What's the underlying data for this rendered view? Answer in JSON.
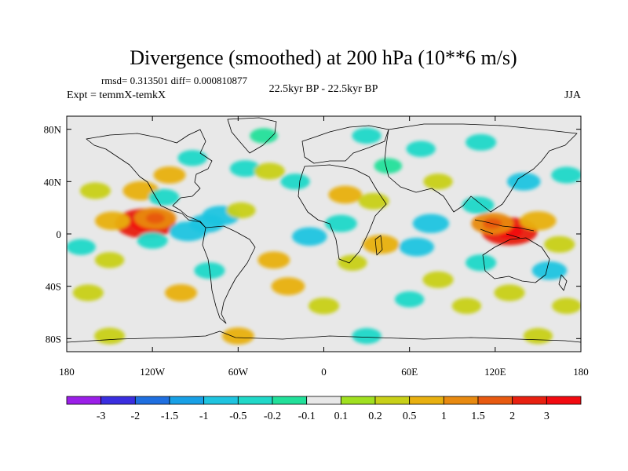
{
  "chart_data": {
    "type": "heatmap",
    "title": "Divergence (smoothed) at 200 hPa (10**6 m/s)",
    "stats_label": "rmsd= 0.313501 diff= 0.000810877",
    "experiment_label": "Expt = temmX-temkX",
    "period_label": "22.5kyr BP - 22.5kyr BP",
    "season_label": "JJA",
    "x_axis": {
      "range": [
        -180,
        180
      ],
      "ticks": [
        {
          "value": -180,
          "label": "180"
        },
        {
          "value": -120,
          "label": "120W"
        },
        {
          "value": -60,
          "label": "60W"
        },
        {
          "value": 0,
          "label": "0"
        },
        {
          "value": 60,
          "label": "60E"
        },
        {
          "value": 120,
          "label": "120E"
        },
        {
          "value": 180,
          "label": "180"
        }
      ]
    },
    "y_axis": {
      "range": [
        -90,
        90
      ],
      "ticks": [
        {
          "value": 80,
          "label": "80N"
        },
        {
          "value": 40,
          "label": "40N"
        },
        {
          "value": 0,
          "label": "0"
        },
        {
          "value": -40,
          "label": "40S"
        },
        {
          "value": -80,
          "label": "80S"
        }
      ]
    },
    "colorbar": {
      "labels": [
        "-3",
        "-2",
        "-1.5",
        "-1",
        "-0.5",
        "-0.2",
        "-0.1",
        "0.1",
        "0.2",
        "0.5",
        "1",
        "1.5",
        "2",
        "3"
      ],
      "colors": [
        "#9b1fe8",
        "#3a2ee0",
        "#1f6fe0",
        "#18a0e6",
        "#1fc4e0",
        "#20d8c8",
        "#22e09a",
        "#e8e8e8",
        "#a0e020",
        "#c8d018",
        "#e8b010",
        "#e88a10",
        "#e85a10",
        "#e82010",
        "#f20a10"
      ]
    },
    "anomalies": [
      {
        "lon": -125,
        "lat": 8,
        "value": 2.5
      },
      {
        "lon": -118,
        "lat": 12,
        "value": 1.2
      },
      {
        "lon": -148,
        "lat": 10,
        "value": 0.7
      },
      {
        "lon": -160,
        "lat": 33,
        "value": 0.4
      },
      {
        "lon": -128,
        "lat": 33,
        "value": 0.8
      },
      {
        "lon": -108,
        "lat": 45,
        "value": 0.5
      },
      {
        "lon": -112,
        "lat": 28,
        "value": -0.4
      },
      {
        "lon": -95,
        "lat": 2,
        "value": -0.9
      },
      {
        "lon": -120,
        "lat": -5,
        "value": -0.4
      },
      {
        "lon": -72,
        "lat": 14,
        "value": -0.9
      },
      {
        "lon": -82,
        "lat": 8,
        "value": -0.7
      },
      {
        "lon": -58,
        "lat": 18,
        "value": 0.3
      },
      {
        "lon": -55,
        "lat": 50,
        "value": -0.4
      },
      {
        "lon": -92,
        "lat": 58,
        "value": -0.3
      },
      {
        "lon": -38,
        "lat": 48,
        "value": 0.4
      },
      {
        "lon": -42,
        "lat": 75,
        "value": -0.2
      },
      {
        "lon": -20,
        "lat": 40,
        "value": -0.3
      },
      {
        "lon": 15,
        "lat": 30,
        "value": 0.6
      },
      {
        "lon": 35,
        "lat": 25,
        "value": 0.4
      },
      {
        "lon": 30,
        "lat": 75,
        "value": -0.3
      },
      {
        "lon": 45,
        "lat": 52,
        "value": -0.2
      },
      {
        "lon": 80,
        "lat": 40,
        "value": 0.3
      },
      {
        "lon": 68,
        "lat": 65,
        "value": -0.3
      },
      {
        "lon": 110,
        "lat": 70,
        "value": -0.4
      },
      {
        "lon": 140,
        "lat": 40,
        "value": -0.6
      },
      {
        "lon": 170,
        "lat": 45,
        "value": -0.4
      },
      {
        "lon": 108,
        "lat": 22,
        "value": -0.5
      },
      {
        "lon": 75,
        "lat": 8,
        "value": -0.8
      },
      {
        "lon": 65,
        "lat": -10,
        "value": -0.7
      },
      {
        "lon": -10,
        "lat": -2,
        "value": -0.7
      },
      {
        "lon": 12,
        "lat": 8,
        "value": -0.5
      },
      {
        "lon": 20,
        "lat": -22,
        "value": 0.3
      },
      {
        "lon": 40,
        "lat": -8,
        "value": 0.8
      },
      {
        "lon": 130,
        "lat": 2,
        "value": 2.2
      },
      {
        "lon": 118,
        "lat": 8,
        "value": 1.2
      },
      {
        "lon": 150,
        "lat": 10,
        "value": 0.8
      },
      {
        "lon": 165,
        "lat": -8,
        "value": 0.4
      },
      {
        "lon": 110,
        "lat": -22,
        "value": -0.4
      },
      {
        "lon": 158,
        "lat": -28,
        "value": -0.7
      },
      {
        "lon": 130,
        "lat": -45,
        "value": 0.4
      },
      {
        "lon": -80,
        "lat": -28,
        "value": -0.4
      },
      {
        "lon": -35,
        "lat": -20,
        "value": 0.5
      },
      {
        "lon": -25,
        "lat": -40,
        "value": 0.6
      },
      {
        "lon": -150,
        "lat": -20,
        "value": 0.3
      },
      {
        "lon": -165,
        "lat": -45,
        "value": 0.4
      },
      {
        "lon": -100,
        "lat": -45,
        "value": 0.5
      },
      {
        "lon": -170,
        "lat": -10,
        "value": -0.3
      },
      {
        "lon": 0,
        "lat": -55,
        "value": 0.4
      },
      {
        "lon": 60,
        "lat": -50,
        "value": -0.3
      },
      {
        "lon": 80,
        "lat": -35,
        "value": 0.4
      },
      {
        "lon": 100,
        "lat": -55,
        "value": 0.3
      },
      {
        "lon": 170,
        "lat": -55,
        "value": 0.3
      },
      {
        "lon": -60,
        "lat": -78,
        "value": 0.5
      },
      {
        "lon": 30,
        "lat": -78,
        "value": -0.3
      },
      {
        "lon": 150,
        "lat": -78,
        "value": 0.3
      },
      {
        "lon": -150,
        "lat": -78,
        "value": 0.4
      }
    ]
  }
}
